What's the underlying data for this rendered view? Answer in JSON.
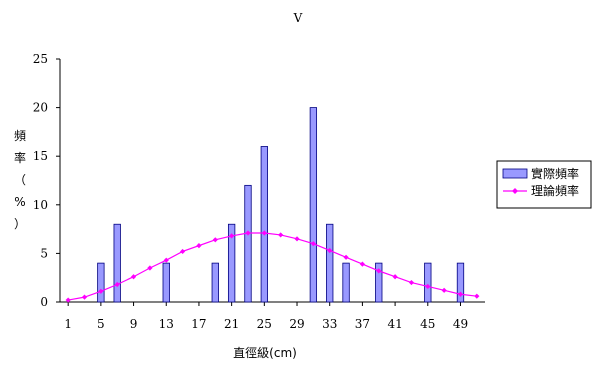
{
  "chart_data": {
    "type": "bar",
    "title": "V",
    "xlabel": "直徑級(cm)",
    "ylabel": "頻率（%）",
    "ylim": [
      0,
      25
    ],
    "yticks": [
      "0",
      "5",
      "10",
      "15",
      "20",
      "25"
    ],
    "x_tick_labels": [
      "1",
      "5",
      "9",
      "13",
      "17",
      "21",
      "25",
      "29",
      "33",
      "37",
      "41",
      "45",
      "49"
    ],
    "grid": false,
    "legend_position": "right",
    "series": [
      {
        "name": "實際頻率",
        "type": "bar",
        "color": "#9999FF",
        "x": [
          5,
          7,
          13,
          19,
          21,
          23,
          25,
          31,
          33,
          35,
          39,
          45,
          49
        ],
        "values": [
          4,
          8,
          4,
          4,
          8,
          12,
          16,
          20,
          8,
          4,
          4,
          4,
          4
        ]
      },
      {
        "name": "理論頻率",
        "type": "line",
        "color": "#FF00FF",
        "x": [
          1,
          3,
          5,
          7,
          9,
          11,
          13,
          15,
          17,
          19,
          21,
          23,
          25,
          27,
          29,
          31,
          33,
          35,
          37,
          39,
          41,
          43,
          45,
          47,
          49,
          51
        ],
        "values": [
          0.2,
          0.5,
          1.1,
          1.8,
          2.6,
          3.5,
          4.3,
          5.2,
          5.8,
          6.4,
          6.8,
          7.1,
          7.1,
          6.9,
          6.5,
          6.0,
          5.3,
          4.6,
          3.9,
          3.2,
          2.6,
          2.0,
          1.6,
          1.2,
          0.8,
          0.6
        ]
      }
    ]
  }
}
